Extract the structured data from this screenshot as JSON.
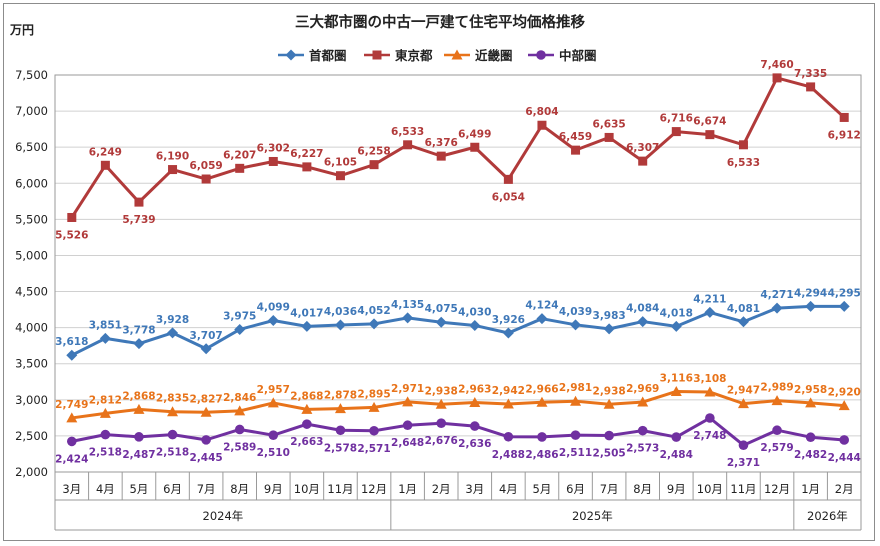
{
  "chart_data": {
    "type": "line",
    "title": "三大都市圏の中古一戸建て住宅平均価格推移",
    "ylabel": "万円",
    "ylim": [
      2000,
      7500
    ],
    "ytick_step": 500,
    "yticks": [
      "2,000",
      "2,500",
      "3,000",
      "3,500",
      "4,000",
      "4,500",
      "5,000",
      "5,500",
      "6,000",
      "6,500",
      "7,000",
      "7,500"
    ],
    "categories": [
      "3月",
      "4月",
      "5月",
      "6月",
      "7月",
      "8月",
      "9月",
      "10月",
      "11月",
      "12月",
      "1月",
      "2月",
      "3月",
      "4月",
      "5月",
      "6月",
      "7月",
      "8月",
      "9月",
      "10月",
      "11月",
      "12月",
      "1月",
      "2月"
    ],
    "years": [
      {
        "label": "2024年",
        "start": 0,
        "end": 9
      },
      {
        "label": "2025年",
        "start": 10,
        "end": 21
      },
      {
        "label": "2026年",
        "start": 22,
        "end": 23
      }
    ],
    "legend_position": "top-center",
    "series": [
      {
        "name": "首都圏",
        "color": "#3f78b8",
        "marker": "diamond",
        "values": [
          3618,
          3851,
          3778,
          3928,
          3707,
          3975,
          4099,
          4017,
          4036,
          4052,
          4135,
          4075,
          4030,
          3926,
          4124,
          4039,
          3983,
          4084,
          4018,
          4211,
          4081,
          4271,
          4294,
          4295
        ],
        "labels": [
          "3,618",
          "3,851",
          "3,778",
          "3,928",
          "3,707",
          "3,975",
          "4,099",
          "4,017",
          "4,036",
          "4,052",
          "4,135",
          "4,075",
          "4,030",
          "3,926",
          "4,124",
          "4,039",
          "3,983",
          "4,084",
          "4,018",
          "4,211",
          "4,081",
          "4,271",
          "4,294",
          "4,295"
        ],
        "label_pos": [
          "above",
          "above",
          "above",
          "above",
          "above",
          "above",
          "above",
          "above",
          "above",
          "above",
          "above",
          "above",
          "above",
          "above",
          "above",
          "above",
          "above",
          "above",
          "above",
          "above",
          "above",
          "above",
          "above",
          "above"
        ]
      },
      {
        "name": "東京都",
        "color": "#b13a3a",
        "marker": "square",
        "values": [
          5526,
          6249,
          5739,
          6190,
          6059,
          6207,
          6302,
          6227,
          6105,
          6258,
          6533,
          6376,
          6499,
          6054,
          6804,
          6459,
          6635,
          6307,
          6716,
          6674,
          6533,
          7460,
          7335,
          6912
        ],
        "labels": [
          "5,526",
          "6,249",
          "5,739",
          "6,190",
          "6,059",
          "6,207",
          "6,302",
          "6,227",
          "6,105",
          "6,258",
          "6,533",
          "6,376",
          "6,499",
          "6,054",
          "6,804",
          "6,459",
          "6,635",
          "6,307",
          "6,716",
          "6,674",
          "6,533",
          "7,460",
          "7,335",
          "6,912"
        ],
        "label_pos": [
          "below",
          "above",
          "below",
          "above",
          "above",
          "above",
          "above",
          "above",
          "above",
          "above",
          "above",
          "above",
          "above",
          "below",
          "above",
          "above",
          "above",
          "above",
          "above",
          "above",
          "below",
          "above",
          "above",
          "below"
        ]
      },
      {
        "name": "近畿圏",
        "color": "#e8731a",
        "marker": "triangle",
        "values": [
          2749,
          2812,
          2868,
          2835,
          2827,
          2846,
          2957,
          2868,
          2878,
          2895,
          2971,
          2938,
          2963,
          2942,
          2966,
          2981,
          2938,
          2969,
          3116,
          3108,
          2947,
          2989,
          2958,
          2920
        ],
        "labels": [
          "2,749",
          "2,812",
          "2,868",
          "2,835",
          "2,827",
          "2,846",
          "2,957",
          "2,868",
          "2,878",
          "2,895",
          "2,971",
          "2,938",
          "2,963",
          "2,942",
          "2,966",
          "2,981",
          "2,938",
          "2,969",
          "3,116",
          "3,108",
          "2,947",
          "2,989",
          "2,958",
          "2,920"
        ],
        "label_pos": [
          "above",
          "above",
          "above",
          "above",
          "above",
          "above",
          "above",
          "above",
          "above",
          "above",
          "above",
          "above",
          "above",
          "above",
          "above",
          "above",
          "above",
          "above",
          "above",
          "above",
          "above",
          "above",
          "above",
          "above"
        ]
      },
      {
        "name": "中部圏",
        "color": "#7030a0",
        "marker": "circle",
        "values": [
          2424,
          2518,
          2487,
          2518,
          2445,
          2589,
          2510,
          2663,
          2578,
          2571,
          2648,
          2676,
          2636,
          2488,
          2486,
          2511,
          2505,
          2573,
          2484,
          2748,
          2371,
          2579,
          2482,
          2444
        ],
        "labels": [
          "2,424",
          "2,518",
          "2,487",
          "2,518",
          "2,445",
          "2,589",
          "2,510",
          "2,663",
          "2,578",
          "2,571",
          "2,648",
          "2,676",
          "2,636",
          "2,488",
          "2,486",
          "2,511",
          "2,505",
          "2,573",
          "2,484",
          "2,748",
          "2,371",
          "2,579",
          "2,482",
          "2,444"
        ],
        "label_pos": [
          "below",
          "below",
          "below",
          "below",
          "below",
          "below",
          "below",
          "below",
          "below",
          "below",
          "below",
          "below",
          "below",
          "below",
          "below",
          "below",
          "below",
          "below",
          "below",
          "below",
          "below",
          "below",
          "below",
          "below"
        ]
      }
    ]
  }
}
